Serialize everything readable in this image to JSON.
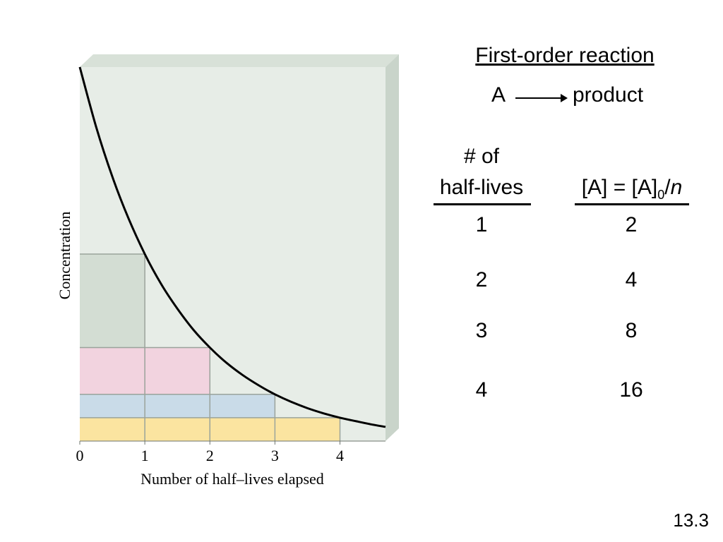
{
  "chart_data": {
    "type": "line",
    "xlabel": "Number of half–lives elapsed",
    "ylabel": "Concentration",
    "xlim": [
      0,
      4.7
    ],
    "ylim": [
      0,
      1
    ],
    "x_ticks": [
      "0",
      "1",
      "2",
      "3",
      "4"
    ],
    "grid": false,
    "series": [
      {
        "x": [
          0,
          0.25,
          0.5,
          0.75,
          1,
          1.25,
          1.5,
          1.75,
          2,
          2.25,
          2.5,
          2.75,
          3,
          3.25,
          3.5,
          3.75,
          4,
          4.25,
          4.5,
          4.7
        ],
        "y": [
          1.0,
          0.841,
          0.707,
          0.595,
          0.5,
          0.42,
          0.354,
          0.297,
          0.25,
          0.21,
          0.177,
          0.149,
          0.125,
          0.105,
          0.088,
          0.074,
          0.0625,
          0.053,
          0.044,
          0.038
        ]
      }
    ],
    "bands": [
      {
        "color": "#d3ddd3",
        "x0": 0,
        "x1": 1,
        "y0": 0.25,
        "y1": 0.5
      },
      {
        "color": "#f2d3df",
        "x0": 0,
        "x1": 2,
        "y0": 0.125,
        "y1": 0.25
      },
      {
        "color": "#c9dbe8",
        "x0": 0,
        "x1": 3,
        "y0": 0.0625,
        "y1": 0.125
      },
      {
        "color": "#fbe4a0",
        "x0": 0,
        "x1": 4,
        "y0": 0,
        "y1": 0.0625
      }
    ],
    "colors": {
      "panel_face": "#e7ede7",
      "panel_side": "#c9d4ca",
      "panel_top": "#d8e1d8",
      "grid_line": "#9aa39b",
      "curve": "#000000"
    }
  },
  "panel": {
    "title": "First-order reaction",
    "reaction": {
      "reactant": "A",
      "product": "product"
    },
    "table": {
      "col1_header_line1": "# of",
      "col1_header_line2": "half-lives",
      "col2_header_prefix": "[A] = [A]",
      "col2_header_subscript": "0",
      "col2_header_slash": "/",
      "col2_header_var": "n",
      "rows": [
        {
          "half_lives": "1",
          "divisor": "2"
        },
        {
          "half_lives": "2",
          "divisor": "4"
        },
        {
          "half_lives": "3",
          "divisor": "8"
        },
        {
          "half_lives": "4",
          "divisor": "16"
        }
      ]
    }
  },
  "slide_number": "13.3"
}
